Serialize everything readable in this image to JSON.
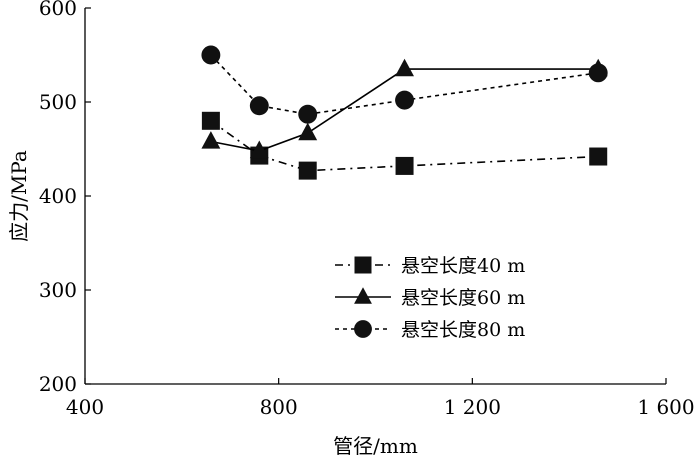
{
  "chart_data": {
    "type": "line",
    "title": "",
    "xlabel": "管径/mm",
    "ylabel": "应力/MPa",
    "xlim": [
      400,
      1600
    ],
    "ylim": [
      200,
      600
    ],
    "xticks": [
      400,
      800,
      1200,
      1600
    ],
    "xtick_labels": [
      "400",
      "800",
      "1 200",
      "1 600"
    ],
    "yticks": [
      200,
      300,
      400,
      500,
      600
    ],
    "ytick_labels": [
      "200",
      "300",
      "400",
      "500",
      "600"
    ],
    "grid": false,
    "legend_position": "center-right",
    "series": [
      {
        "name": "悬空长度40 m",
        "marker": "square",
        "line_style": "dash-dot",
        "x": [
          660,
          760,
          860,
          1060,
          1460
        ],
        "y": [
          480,
          443,
          427,
          432,
          442
        ]
      },
      {
        "name": "悬空长度60 m",
        "marker": "triangle",
        "line_style": "solid",
        "x": [
          660,
          760,
          860,
          1060,
          1460
        ],
        "y": [
          458,
          448,
          467,
          535,
          535
        ]
      },
      {
        "name": "悬空长度80 m",
        "marker": "circle",
        "line_style": "dashed",
        "x": [
          660,
          760,
          860,
          1060,
          1460
        ],
        "y": [
          550,
          496,
          487,
          502,
          531
        ]
      }
    ]
  }
}
